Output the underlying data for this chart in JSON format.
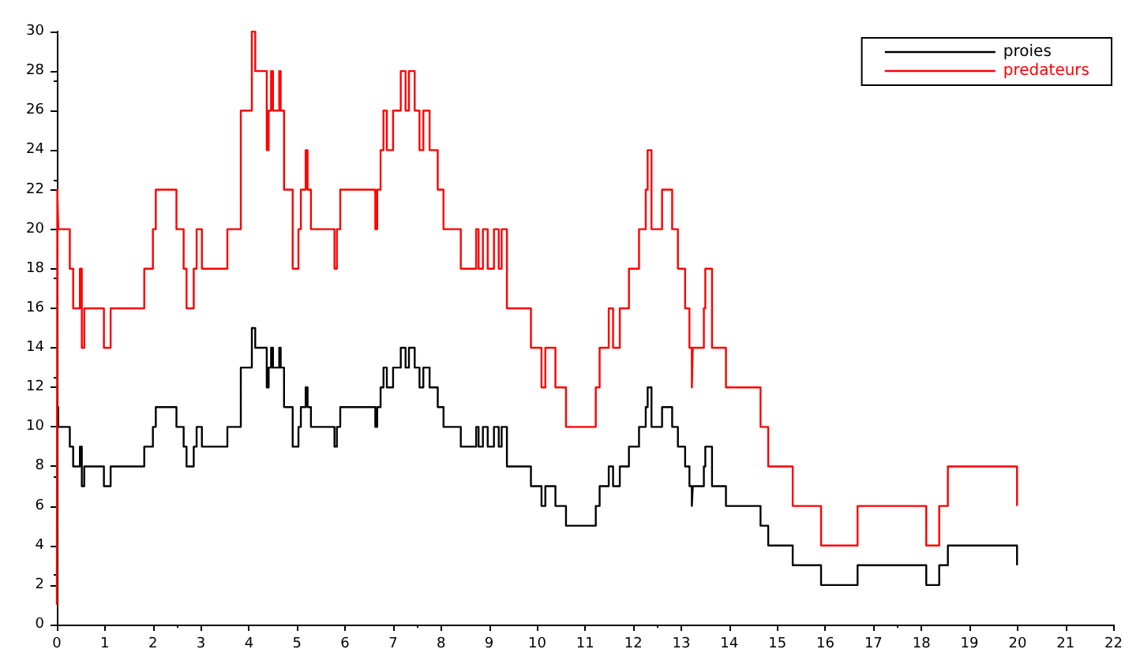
{
  "chart_data": {
    "type": "step",
    "legend": "top right",
    "grid": false,
    "xlim": [
      0,
      22
    ],
    "xticks": [
      0,
      1,
      2,
      3,
      4,
      5,
      6,
      7,
      8,
      9,
      10,
      11,
      12,
      13,
      14,
      15,
      16,
      17,
      18,
      19,
      20,
      21,
      22
    ],
    "ylim": [
      0,
      30
    ],
    "yticks": [
      0,
      2,
      4,
      6,
      8,
      10,
      12,
      14,
      16,
      18,
      20,
      22,
      24,
      26,
      28,
      30
    ],
    "series": [
      {
        "name": "proies",
        "color": "#000000",
        "x": [
          0,
          0.03,
          0.27,
          0.34,
          0.48,
          0.52,
          0.57,
          0.98,
          1.12,
          1.82,
          2.0,
          2.06,
          2.49,
          2.64,
          2.7,
          2.85,
          2.91,
          3.02,
          3.55,
          3.83,
          4.06,
          4.13,
          4.37,
          4.41,
          4.46,
          4.5,
          4.63,
          4.66,
          4.73,
          4.91,
          5.03,
          5.08,
          5.18,
          5.22,
          5.29,
          5.78,
          5.83,
          5.9,
          6.63,
          6.67,
          6.74,
          6.8,
          6.87,
          7.0,
          7.16,
          7.26,
          7.33,
          7.45,
          7.55,
          7.63,
          7.76,
          7.93,
          8.05,
          8.41,
          8.73,
          8.78,
          8.87,
          8.97,
          9.1,
          9.2,
          9.26,
          9.37,
          9.87,
          10.09,
          10.17,
          10.38,
          10.6,
          11.22,
          11.3,
          11.49,
          11.58,
          11.72,
          11.91,
          12.12,
          12.26,
          12.3,
          12.38,
          12.6,
          12.81,
          12.93,
          13.08,
          13.17,
          13.22,
          13.24,
          13.47,
          13.5,
          13.64,
          13.93,
          14.65,
          14.81,
          15.32,
          15.91,
          16.67,
          18.1,
          18.37,
          18.55,
          19.99,
          20.0
        ],
        "values": [
          11,
          10,
          9,
          8,
          9,
          7,
          8,
          7,
          8,
          9,
          10,
          11,
          10,
          9,
          8,
          9,
          10,
          9,
          10,
          13,
          15,
          14,
          12,
          13,
          14,
          13,
          14,
          13,
          11,
          9,
          10,
          11,
          12,
          11,
          10,
          9,
          10,
          11,
          10,
          11,
          12,
          13,
          12,
          13,
          14,
          13,
          14,
          13,
          12,
          13,
          12,
          11,
          10,
          9,
          10,
          9,
          10,
          9,
          10,
          9,
          10,
          8,
          7,
          6,
          7,
          6,
          5,
          6,
          7,
          8,
          7,
          8,
          9,
          10,
          11,
          12,
          10,
          11,
          10,
          9,
          8,
          7,
          6,
          7,
          8,
          9,
          7,
          6,
          5,
          4,
          3,
          2,
          3,
          2,
          3,
          4,
          3,
          3
        ]
      },
      {
        "name": "predateurs",
        "color": "#ff0000",
        "x": [
          0,
          0.01,
          0.03,
          0.27,
          0.34,
          0.48,
          0.52,
          0.57,
          0.98,
          1.12,
          1.82,
          2.0,
          2.06,
          2.49,
          2.64,
          2.7,
          2.85,
          2.91,
          3.02,
          3.55,
          3.83,
          4.06,
          4.13,
          4.37,
          4.41,
          4.46,
          4.5,
          4.63,
          4.66,
          4.73,
          4.91,
          5.03,
          5.08,
          5.18,
          5.22,
          5.29,
          5.78,
          5.83,
          5.9,
          6.63,
          6.67,
          6.74,
          6.8,
          6.87,
          7.0,
          7.16,
          7.26,
          7.33,
          7.45,
          7.55,
          7.63,
          7.76,
          7.93,
          8.05,
          8.41,
          8.73,
          8.78,
          8.87,
          8.97,
          9.1,
          9.2,
          9.26,
          9.37,
          9.87,
          10.09,
          10.17,
          10.38,
          10.6,
          11.22,
          11.3,
          11.49,
          11.58,
          11.72,
          11.91,
          12.12,
          12.26,
          12.3,
          12.38,
          12.6,
          12.81,
          12.93,
          13.08,
          13.17,
          13.22,
          13.24,
          13.47,
          13.5,
          13.64,
          13.93,
          14.65,
          14.81,
          15.32,
          15.91,
          16.67,
          18.1,
          18.37,
          18.55,
          19.99,
          20.0
        ],
        "values": [
          1,
          22,
          20,
          18,
          16,
          18,
          14,
          16,
          14,
          16,
          18,
          20,
          22,
          20,
          18,
          16,
          18,
          20,
          18,
          20,
          26,
          30,
          28,
          24,
          26,
          28,
          26,
          28,
          26,
          22,
          18,
          20,
          22,
          24,
          22,
          20,
          18,
          20,
          22,
          20,
          22,
          24,
          26,
          24,
          26,
          28,
          26,
          28,
          26,
          24,
          26,
          24,
          22,
          20,
          18,
          20,
          18,
          20,
          18,
          20,
          18,
          20,
          16,
          14,
          12,
          14,
          12,
          10,
          12,
          14,
          16,
          14,
          16,
          18,
          20,
          22,
          24,
          20,
          22,
          20,
          18,
          16,
          14,
          12,
          14,
          16,
          18,
          14,
          12,
          10,
          8,
          6,
          4,
          6,
          4,
          6,
          8,
          6,
          6
        ]
      }
    ]
  }
}
